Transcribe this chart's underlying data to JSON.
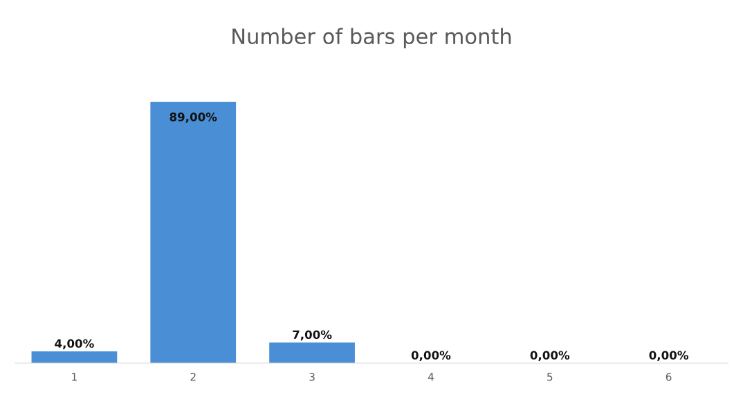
{
  "chart_data": {
    "type": "bar",
    "title": "Number of bars per month",
    "categories": [
      "1",
      "2",
      "3",
      "4",
      "5",
      "6"
    ],
    "values": [
      4,
      89,
      7,
      0,
      0,
      0
    ],
    "value_labels": [
      "4,00%",
      "89,00%",
      "7,00%",
      "0,00%",
      "0,00%",
      "0,00%"
    ],
    "color": "#4a8fd6",
    "grid": false,
    "legend": false
  }
}
